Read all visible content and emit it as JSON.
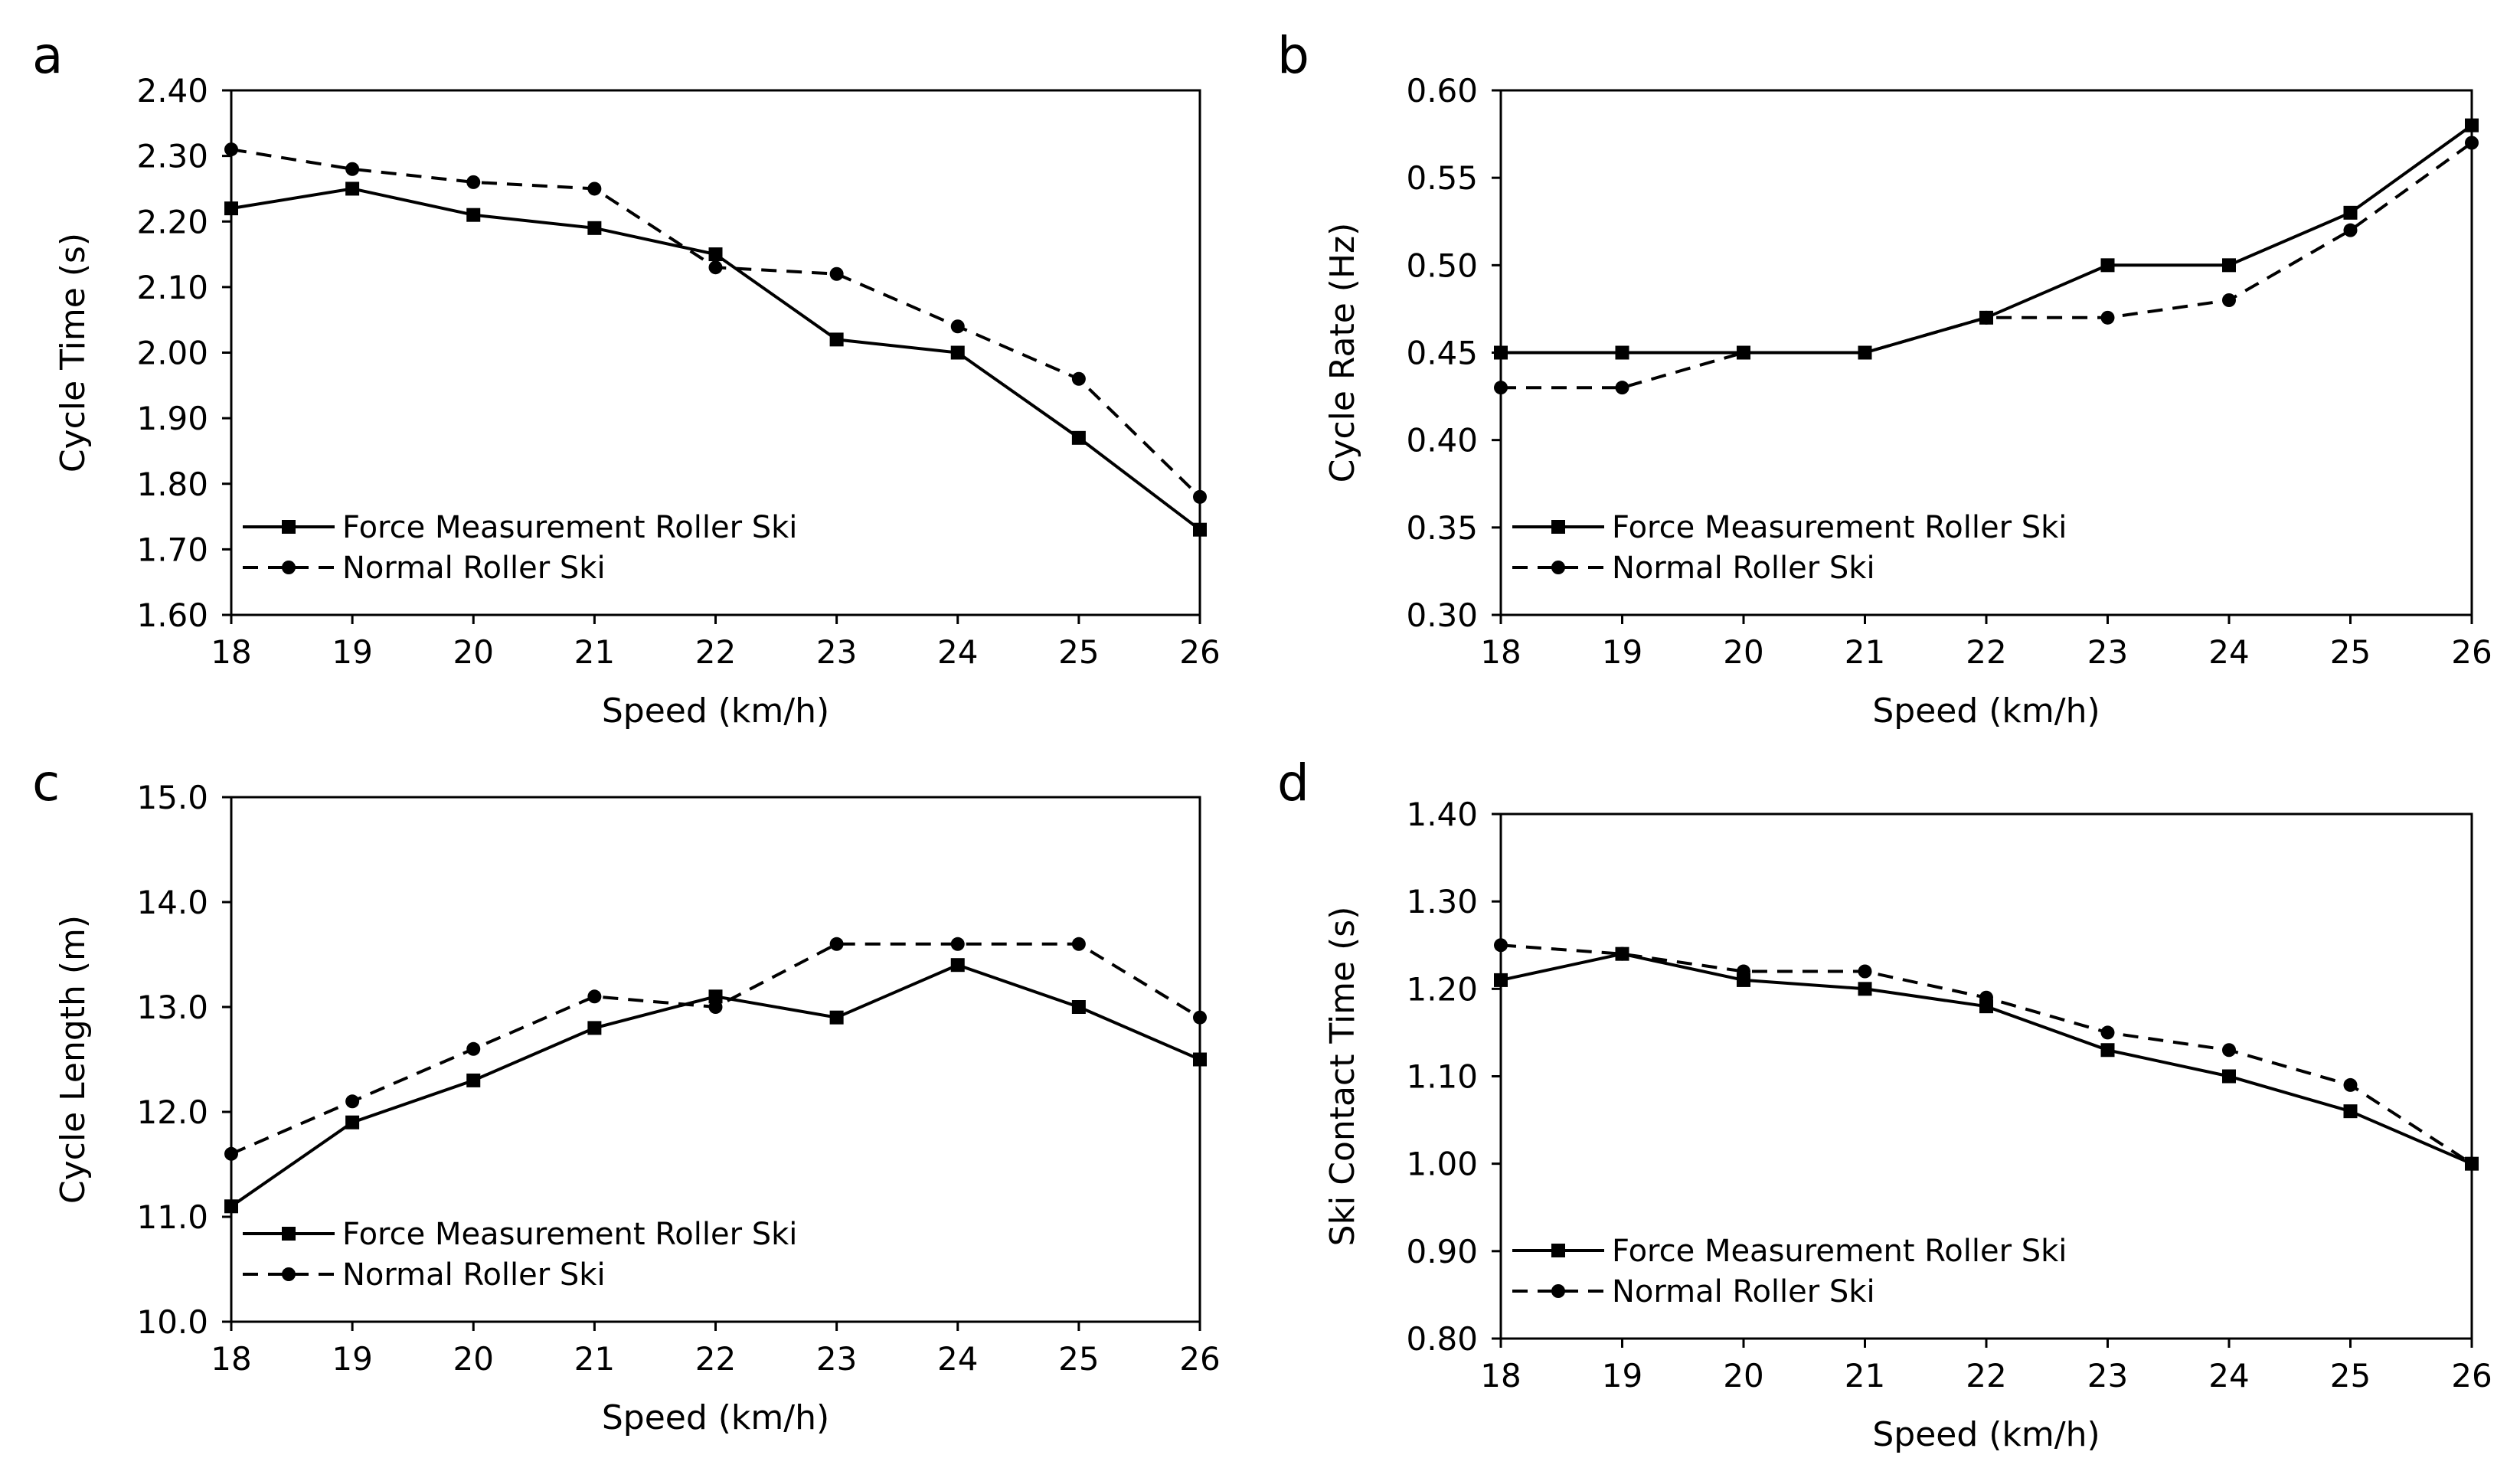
{
  "chart_data": [
    {
      "panel": "a",
      "type": "line",
      "title": "",
      "xlabel": "Speed (km/h)",
      "ylabel": "Cycle Time (s)",
      "xlim": [
        18,
        26
      ],
      "ylim": [
        1.6,
        2.4
      ],
      "ystep": 0.1,
      "ydecimals": 2,
      "x": [
        18,
        19,
        20,
        21,
        22,
        23,
        24,
        25,
        26
      ],
      "grid": false,
      "legend": "bottom-left",
      "series": [
        {
          "name": "Force Measurement Roller Ski",
          "style": "solid",
          "marker": "square",
          "values": [
            2.22,
            2.25,
            2.21,
            2.19,
            2.15,
            2.02,
            2.0,
            1.87,
            1.73
          ]
        },
        {
          "name": "Normal Roller Ski",
          "style": "dashed",
          "marker": "circle",
          "values": [
            2.31,
            2.28,
            2.26,
            2.25,
            2.13,
            2.12,
            2.04,
            1.96,
            1.78
          ]
        }
      ]
    },
    {
      "panel": "b",
      "type": "line",
      "title": "",
      "xlabel": "Speed (km/h)",
      "ylabel": "Cycle Rate (Hz)",
      "xlim": [
        18,
        26
      ],
      "ylim": [
        0.3,
        0.6
      ],
      "ystep": 0.05,
      "ydecimals": 2,
      "x": [
        18,
        19,
        20,
        21,
        22,
        23,
        24,
        25,
        26
      ],
      "grid": false,
      "legend": "bottom-left",
      "series": [
        {
          "name": "Force Measurement Roller Ski",
          "style": "solid",
          "marker": "square",
          "values": [
            0.45,
            0.45,
            0.45,
            0.45,
            0.47,
            0.5,
            0.5,
            0.53,
            0.58
          ]
        },
        {
          "name": "Normal Roller Ski",
          "style": "dashed",
          "marker": "circle",
          "values": [
            0.43,
            0.43,
            0.45,
            0.45,
            0.47,
            0.47,
            0.48,
            0.52,
            0.57
          ]
        }
      ]
    },
    {
      "panel": "c",
      "type": "line",
      "title": "",
      "xlabel": "Speed (km/h)",
      "ylabel": "Cycle Length (m)",
      "xlim": [
        18,
        26
      ],
      "ylim": [
        10.0,
        15.0
      ],
      "ystep": 1.0,
      "ydecimals": 1,
      "x": [
        18,
        19,
        20,
        21,
        22,
        23,
        24,
        25,
        26
      ],
      "grid": false,
      "legend": "bottom-left",
      "series": [
        {
          "name": "Force Measurement Roller Ski",
          "style": "solid",
          "marker": "square",
          "values": [
            11.1,
            11.9,
            12.3,
            12.8,
            13.1,
            12.9,
            13.4,
            13.0,
            12.5
          ]
        },
        {
          "name": "Normal Roller Ski",
          "style": "dashed",
          "marker": "circle",
          "values": [
            11.6,
            12.1,
            12.6,
            13.1,
            13.0,
            13.6,
            13.6,
            13.6,
            12.9
          ]
        }
      ]
    },
    {
      "panel": "d",
      "type": "line",
      "title": "",
      "xlabel": "Speed (km/h)",
      "ylabel": "Ski Contact Time (s)",
      "xlim": [
        18,
        26
      ],
      "ylim": [
        0.8,
        1.4
      ],
      "ystep": 0.1,
      "ydecimals": 2,
      "x": [
        18,
        19,
        20,
        21,
        22,
        23,
        24,
        25,
        26
      ],
      "grid": false,
      "legend": "bottom-left",
      "series": [
        {
          "name": "Force Measurement Roller Ski",
          "style": "solid",
          "marker": "square",
          "values": [
            1.21,
            1.24,
            1.21,
            1.2,
            1.18,
            1.13,
            1.1,
            1.06,
            1.0
          ]
        },
        {
          "name": "Normal Roller Ski",
          "style": "dashed",
          "marker": "circle",
          "values": [
            1.25,
            1.24,
            1.22,
            1.22,
            1.19,
            1.15,
            1.13,
            1.09,
            1.0
          ]
        }
      ]
    }
  ]
}
